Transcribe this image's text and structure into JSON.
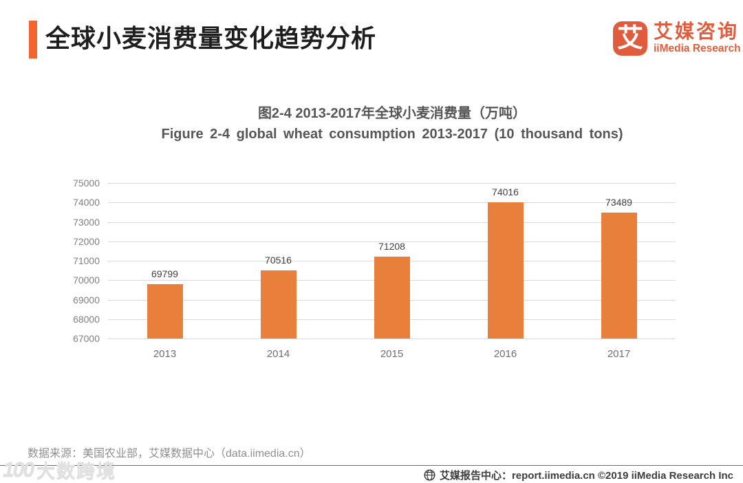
{
  "page": {
    "header": {
      "title": "全球小麦消费量变化趋势分析",
      "logo": {
        "mark": "艾",
        "name_cn": "艾媒咨询",
        "name_en": "iiMedia Research"
      }
    },
    "footer": {
      "source": "数据来源：美国农业部，艾媒数据中心（data.iimedia.cn）",
      "report_line": {
        "icon": "globe-icon",
        "text": "艾媒报告中心：report.iimedia.cn  ©2019  iiMedia Research Inc"
      },
      "watermark": {
        "mark": "100",
        "text": "大数跨境"
      }
    },
    "colors": {
      "accent_orange": "#F2632F",
      "brand_orange": "#E05C3C",
      "bar_orange": "#E8803C",
      "gridline_gray": "#D9D9D9",
      "axis_text_gray": "#808080",
      "title_gray": "#565656"
    }
  },
  "chart_data": {
    "type": "bar",
    "title_cn": "图2-4 2013-2017年全球小麦消费量（万吨）",
    "title_en": "Figure 2-4 global wheat consumption 2013-2017 (10 thousand tons)",
    "categories": [
      "2013",
      "2014",
      "2015",
      "2016",
      "2017"
    ],
    "values": [
      69799,
      70516,
      71208,
      74016,
      73489
    ],
    "ylim": [
      67000,
      75000
    ],
    "ytick_step": 1000,
    "yticks": [
      75000,
      74000,
      73000,
      72000,
      71000,
      70000,
      69000,
      68000,
      67000
    ],
    "grid": true,
    "legend_position": "none",
    "data_labels": true,
    "bar_color": "#E8803C"
  }
}
